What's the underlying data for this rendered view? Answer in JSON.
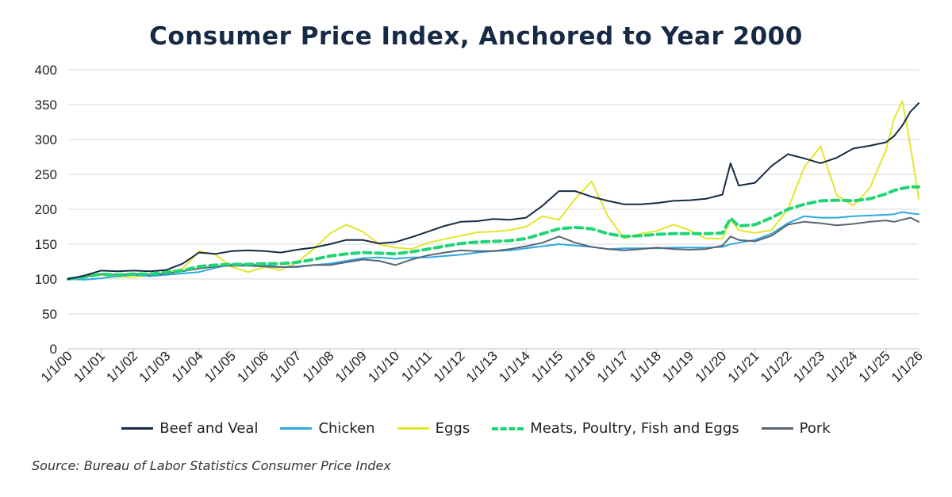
{
  "title": "Consumer Price Index, Anchored to Year 2000",
  "source": "Source: Bureau of Labor Statistics Consumer Price Index",
  "chart_data": {
    "type": "line",
    "title": "Consumer Price Index, Anchored to Year 2000",
    "xlabel": "",
    "ylabel": "",
    "ylim": [
      0,
      400
    ],
    "yticks": [
      0,
      50,
      100,
      150,
      200,
      250,
      300,
      350,
      400
    ],
    "xlim": [
      2000,
      2026
    ],
    "xtick_labels": [
      "1/1/00",
      "1/1/01",
      "1/1/02",
      "1/1/03",
      "1/1/04",
      "1/1/05",
      "1/1/06",
      "1/1/07",
      "1/1/08",
      "1/1/09",
      "1/1/10",
      "1/1/11",
      "1/1/12",
      "1/1/13",
      "1/1/14",
      "1/1/15",
      "1/1/16",
      "1/1/17",
      "1/1/18",
      "1/1/19",
      "1/1/20",
      "1/1/21",
      "1/1/22",
      "1/1/23",
      "1/1/24",
      "1/1/25",
      "1/1/26"
    ],
    "grid": "horizontal",
    "legend": "bottom",
    "x": [
      2000,
      2000.5,
      2001,
      2001.5,
      2002,
      2002.5,
      2003,
      2003.5,
      2004,
      2004.5,
      2005,
      2005.5,
      2006,
      2006.5,
      2007,
      2007.5,
      2008,
      2008.5,
      2009,
      2009.5,
      2010,
      2010.5,
      2011,
      2011.5,
      2012,
      2012.5,
      2013,
      2013.5,
      2014,
      2014.5,
      2015,
      2015.5,
      2016,
      2016.5,
      2017,
      2017.5,
      2018,
      2018.5,
      2019,
      2019.5,
      2020,
      2020.25,
      2020.5,
      2021,
      2021.5,
      2022,
      2022.5,
      2023,
      2023.5,
      2024,
      2024.5,
      2025,
      2025.25,
      2025.5,
      2025.75,
      2026
    ],
    "series": [
      {
        "name": "Beef and Veal",
        "color": "#172a45",
        "style": "solid",
        "values": [
          100,
          105,
          112,
          111,
          112,
          111,
          113,
          122,
          138,
          136,
          140,
          141,
          140,
          138,
          142,
          145,
          150,
          156,
          156,
          151,
          153,
          160,
          168,
          176,
          182,
          183,
          186,
          185,
          188,
          205,
          226,
          226,
          218,
          212,
          207,
          207,
          209,
          212,
          213,
          215,
          221,
          266,
          234,
          238,
          262,
          279,
          273,
          266,
          274,
          287,
          291,
          296,
          305,
          320,
          340,
          352
        ]
      },
      {
        "name": "Chicken",
        "color": "#2fa8e0",
        "style": "solid",
        "values": [
          100,
          99,
          101,
          104,
          106,
          104,
          106,
          108,
          110,
          116,
          121,
          121,
          120,
          117,
          117,
          120,
          122,
          126,
          130,
          131,
          129,
          131,
          131,
          133,
          135,
          138,
          140,
          141,
          144,
          147,
          150,
          148,
          146,
          143,
          144,
          144,
          144,
          145,
          145,
          145,
          146,
          150,
          152,
          156,
          165,
          180,
          190,
          188,
          188,
          190,
          191,
          192,
          193,
          196,
          194,
          193
        ]
      },
      {
        "name": "Eggs",
        "color": "#e3e62b",
        "style": "solid",
        "values": [
          99,
          103,
          106,
          103,
          103,
          105,
          109,
          115,
          140,
          135,
          117,
          110,
          117,
          113,
          124,
          143,
          165,
          178,
          168,
          150,
          145,
          143,
          152,
          157,
          162,
          167,
          168,
          170,
          175,
          190,
          185,
          215,
          240,
          190,
          158,
          165,
          169,
          178,
          170,
          158,
          158,
          185,
          170,
          166,
          170,
          200,
          260,
          290,
          220,
          205,
          230,
          285,
          330,
          355,
          290,
          215
        ]
      },
      {
        "name": "Meats, Poultry, Fish and Eggs",
        "color": "#1fd574",
        "style": "dashed",
        "values": [
          100,
          103,
          107,
          106,
          107,
          107,
          110,
          112,
          118,
          120,
          121,
          121,
          122,
          122,
          124,
          128,
          133,
          136,
          138,
          137,
          136,
          139,
          143,
          147,
          151,
          153,
          154,
          155,
          158,
          165,
          172,
          174,
          172,
          165,
          161,
          162,
          164,
          165,
          165,
          165,
          166,
          187,
          176,
          178,
          188,
          200,
          207,
          212,
          213,
          212,
          215,
          222,
          227,
          230,
          232,
          232
        ]
      },
      {
        "name": "Pork",
        "color": "#5b6572",
        "style": "solid",
        "values": [
          100,
          104,
          107,
          106,
          107,
          106,
          108,
          111,
          115,
          118,
          119,
          119,
          118,
          117,
          118,
          120,
          120,
          124,
          128,
          126,
          120,
          128,
          134,
          138,
          141,
          140,
          140,
          143,
          147,
          152,
          161,
          152,
          146,
          143,
          141,
          143,
          145,
          143,
          142,
          143,
          148,
          161,
          156,
          154,
          162,
          178,
          182,
          180,
          177,
          179,
          182,
          184,
          182,
          185,
          188,
          182
        ]
      }
    ]
  }
}
